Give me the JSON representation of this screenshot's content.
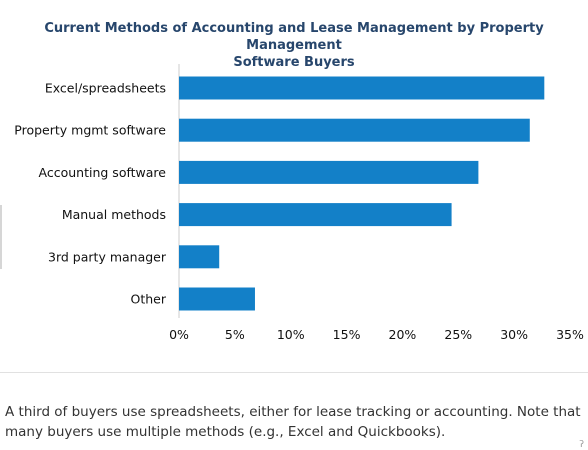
{
  "chart_data": {
    "type": "bar",
    "orientation": "horizontal",
    "title_lines": [
      "Current Methods of Accounting and Lease Management by Property Management",
      "Software Buyers"
    ],
    "categories": [
      "Excel/spreadsheets",
      "Property mgmt software",
      "Accounting software",
      "Manual methods",
      "3rd party manager",
      "Other"
    ],
    "values": [
      32.7,
      31.4,
      26.8,
      24.4,
      3.6,
      6.8
    ],
    "unit": "%",
    "xlim": [
      0,
      35
    ],
    "ticks": [
      "0%",
      "5%",
      "10%",
      "15%",
      "20%",
      "25%",
      "30%",
      "35%"
    ],
    "tick_values": [
      0,
      5,
      10,
      15,
      20,
      25,
      30,
      35
    ],
    "bar_color": "#1380c8",
    "grid": false,
    "legend": "none"
  },
  "caption": "A third of buyers use spreadsheets, either for lease tracking or accounting. Note that many buyers use multiple methods (e.g., Excel and Quickbooks)."
}
